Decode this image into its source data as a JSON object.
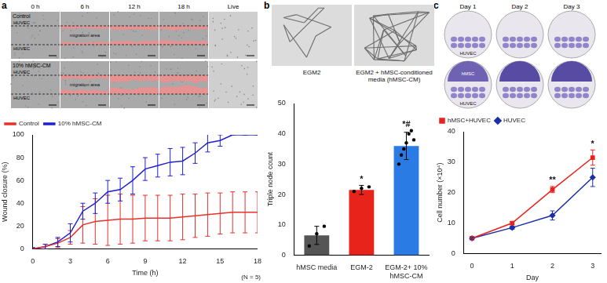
{
  "panel_labels": [
    "a",
    "b",
    "c"
  ],
  "images": {
    "a": {
      "time_points": [
        "0 h",
        "6 h",
        "12 h",
        "18 h",
        "Live"
      ],
      "rows": [
        "Control",
        "10% hMSC-CM"
      ],
      "cell_label": "HUVEC",
      "arrow_label": "migration area"
    },
    "b": {
      "captions": [
        "EGM2",
        "EGM2 + hMSC-conditioned media (hMSC-CM)"
      ]
    },
    "c": {
      "days": [
        "Day 1",
        "Day 2",
        "Day 3"
      ],
      "rows": [
        [
          "HUVEC"
        ],
        [
          "hMSC",
          "HUVEC"
        ]
      ]
    }
  },
  "chart_data": [
    {
      "type": "line",
      "xlabel": "Time (h)",
      "ylabel": "Wound closure (%)",
      "annotations": [
        "(N = 5)"
      ],
      "x": [
        0,
        1,
        2,
        3,
        4,
        5,
        6,
        7,
        8,
        9,
        10,
        11,
        12,
        13,
        14,
        15,
        16,
        17,
        18
      ],
      "series": [
        {
          "name": "Control",
          "color": "#e8312a",
          "values": [
            0,
            2,
            5,
            10,
            21,
            24,
            25,
            26,
            26,
            27,
            27,
            27,
            28,
            29,
            30,
            31,
            32,
            32,
            32
          ],
          "error": [
            1,
            2,
            4,
            6,
            16,
            20,
            22,
            22,
            21,
            20,
            20,
            20,
            20,
            19,
            19,
            18,
            18,
            18,
            18
          ]
        },
        {
          "name": "10% hMSC-CM",
          "color": "#2020d0",
          "values": [
            0,
            2,
            6,
            14,
            33,
            40,
            50,
            52,
            60,
            70,
            73,
            76,
            77,
            84,
            93,
            95,
            100,
            100,
            100
          ],
          "error": [
            1,
            2,
            4,
            8,
            7,
            9,
            10,
            10,
            12,
            10,
            10,
            12,
            12,
            9,
            8,
            5,
            0,
            0,
            0
          ]
        }
      ],
      "xlim": [
        0,
        18
      ],
      "xticks": [
        0,
        3,
        6,
        9,
        12,
        15,
        18
      ],
      "ylim": [
        0,
        100
      ],
      "yticks": [
        0,
        20,
        40,
        60,
        80,
        100
      ],
      "legend": "upper left",
      "grid": false
    },
    {
      "type": "bar",
      "ylabel": "Triple node count",
      "categories": [
        "hMSC media",
        "EGM-2",
        "EGM-2+ 10% hMSC-CM"
      ],
      "values": [
        6.5,
        21.5,
        36
      ],
      "error": [
        3,
        1.5,
        4.5
      ],
      "points": [
        [
          3,
          7,
          9.5
        ],
        [
          21,
          22,
          22.5
        ],
        [
          30,
          33,
          35,
          37,
          40,
          41,
          38
        ]
      ],
      "colors": [
        "#555555",
        "#e8231c",
        "#2b7be4"
      ],
      "significance": [
        null,
        "*",
        "*#"
      ],
      "ylim": [
        0,
        50
      ],
      "yticks": [
        0,
        10,
        20,
        30,
        40,
        50
      ],
      "grid": false
    },
    {
      "type": "line",
      "xlabel": "Day",
      "ylabel": "Cell number (×10⁴)",
      "x": [
        0,
        1,
        2,
        3
      ],
      "series": [
        {
          "name": "hMSC+HUVEC",
          "color": "#e8231c",
          "marker": "square",
          "values": [
            5,
            10,
            21,
            31.5
          ],
          "error": [
            0.3,
            0.5,
            1,
            2.5
          ]
        },
        {
          "name": "HUVEC",
          "color": "#1c2fa8",
          "marker": "diamond",
          "values": [
            5,
            8.5,
            12.5,
            25
          ],
          "error": [
            0.3,
            0.5,
            1.5,
            3
          ]
        }
      ],
      "significance": [
        null,
        null,
        "**",
        "*"
      ],
      "xlim": [
        -0.2,
        3.2
      ],
      "xticks": [
        0,
        1,
        2,
        3
      ],
      "ylim": [
        0,
        40
      ],
      "yticks": [
        0,
        10,
        20,
        30,
        40
      ],
      "legend": "upper left",
      "grid": false
    }
  ]
}
